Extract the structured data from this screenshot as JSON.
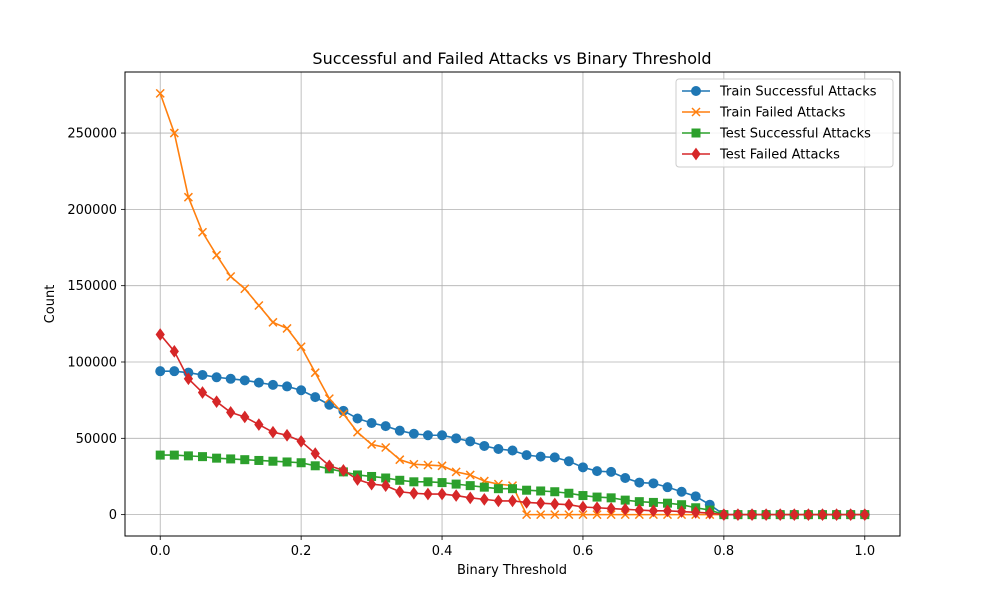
{
  "chart_data": {
    "type": "line",
    "title": "Successful and Failed Attacks vs Binary Threshold",
    "xlabel": "Binary Threshold",
    "ylabel": "Count",
    "xlim": [
      -0.05,
      1.05
    ],
    "ylim": [
      -14000,
      290000
    ],
    "xticks": [
      "0.0",
      "0.2",
      "0.4",
      "0.6",
      "0.8",
      "1.0"
    ],
    "xtick_values": [
      0,
      0.2,
      0.4,
      0.6,
      0.8,
      1.0
    ],
    "yticks": [
      "0",
      "50000",
      "100000",
      "150000",
      "200000",
      "250000"
    ],
    "ytick_values": [
      0,
      50000,
      100000,
      150000,
      200000,
      250000
    ],
    "grid": true,
    "legend_position": "top-right",
    "x": [
      0.0,
      0.02,
      0.04,
      0.06,
      0.08,
      0.1,
      0.12,
      0.14,
      0.16,
      0.18,
      0.2,
      0.22,
      0.24,
      0.26,
      0.28,
      0.3,
      0.32,
      0.34,
      0.36,
      0.38,
      0.4,
      0.42,
      0.44,
      0.46,
      0.48,
      0.5,
      0.52,
      0.54,
      0.56,
      0.58,
      0.6,
      0.62,
      0.64,
      0.66,
      0.68,
      0.7,
      0.72,
      0.74,
      0.76,
      0.78,
      0.8,
      0.82,
      0.84,
      0.86,
      0.88,
      0.9,
      0.92,
      0.94,
      0.96,
      0.98,
      1.0
    ],
    "series": [
      {
        "name": "Train Successful Attacks",
        "color": "#1f77b4",
        "marker": "circle",
        "values": [
          94000,
          94000,
          93000,
          91500,
          90000,
          89000,
          88000,
          86500,
          85000,
          84000,
          81500,
          77000,
          72000,
          68000,
          63000,
          60000,
          58000,
          55000,
          53000,
          52000,
          52000,
          50000,
          48000,
          45000,
          43000,
          42000,
          39000,
          38000,
          37500,
          35000,
          31000,
          28500,
          28000,
          24000,
          21000,
          20500,
          18000,
          15000,
          12000,
          6500,
          0,
          0,
          0,
          0,
          0,
          0,
          0,
          0,
          0,
          0,
          0
        ]
      },
      {
        "name": "Train Failed Attacks",
        "color": "#ff7f0e",
        "marker": "x",
        "values": [
          276000,
          250000,
          208000,
          185000,
          170000,
          156000,
          148000,
          137000,
          126000,
          122000,
          110000,
          93000,
          76000,
          66000,
          54000,
          46000,
          44000,
          36000,
          33000,
          32500,
          32000,
          28000,
          26000,
          22000,
          20000,
          19000,
          0,
          0,
          0,
          0,
          0,
          0,
          0,
          0,
          0,
          0,
          0,
          0,
          0,
          0,
          0,
          0,
          0,
          0,
          0,
          0,
          0,
          0,
          0,
          0,
          0
        ]
      },
      {
        "name": "Test Successful Attacks",
        "color": "#2ca02c",
        "marker": "square",
        "values": [
          39000,
          39000,
          38500,
          38000,
          37000,
          36500,
          36000,
          35500,
          35000,
          34500,
          34000,
          32000,
          30000,
          28000,
          26000,
          25000,
          24000,
          22500,
          21500,
          21500,
          21000,
          20000,
          19000,
          18000,
          17000,
          17000,
          16000,
          15500,
          15000,
          14000,
          12500,
          11500,
          11000,
          9500,
          8500,
          8000,
          7500,
          6500,
          4500,
          3000,
          0,
          0,
          0,
          0,
          0,
          0,
          0,
          0,
          0,
          0,
          0
        ]
      },
      {
        "name": "Test Failed Attacks",
        "color": "#d62728",
        "marker": "diamond",
        "values": [
          118000,
          107000,
          89000,
          80000,
          74000,
          67000,
          64000,
          59000,
          54000,
          52000,
          48000,
          40000,
          32000,
          29000,
          23000,
          20000,
          19000,
          15000,
          14000,
          13500,
          13500,
          12500,
          11000,
          10000,
          9000,
          9000,
          8000,
          7500,
          7000,
          6500,
          5000,
          4500,
          4000,
          3500,
          3000,
          2500,
          2500,
          2000,
          1500,
          1000,
          0,
          0,
          0,
          0,
          0,
          0,
          0,
          0,
          0,
          0,
          0
        ]
      }
    ]
  }
}
